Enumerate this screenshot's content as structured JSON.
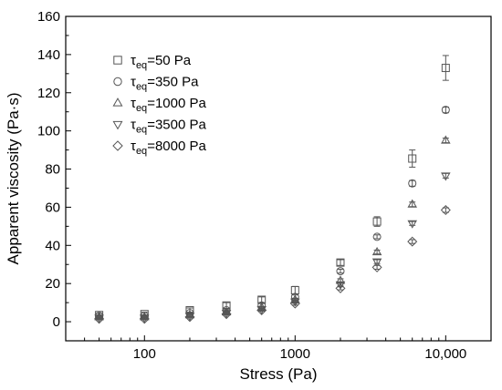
{
  "chart_data": {
    "type": "scatter",
    "xlabel": "Stress (Pa)",
    "ylabel": "Apparent viscosity (Pa·s)",
    "xscale": "log",
    "xlim": [
      30,
      20000
    ],
    "ylim": [
      -10,
      160
    ],
    "xticks": [
      {
        "value": 100,
        "label": "100"
      },
      {
        "value": 1000,
        "label": "1000"
      },
      {
        "value": 10000,
        "label": "10,000"
      }
    ],
    "yticks": [
      0,
      20,
      40,
      60,
      80,
      100,
      120,
      140,
      160
    ],
    "grid": false,
    "legend_position": "top-left",
    "x": [
      50,
      100,
      200,
      350,
      600,
      1000,
      2000,
      3500,
      6000,
      10000
    ],
    "series": [
      {
        "name": "τeq=50 Pa",
        "legend_main": "τ",
        "legend_sub": "eq",
        "legend_rest": "=50 Pa",
        "marker": "square",
        "values": [
          3.5,
          4.0,
          6.0,
          8.5,
          11.5,
          16.5,
          31.0,
          52.5,
          85.5,
          133.0
        ],
        "errors": [
          1.0,
          1.0,
          1.2,
          1.5,
          1.5,
          2.0,
          1.5,
          2.5,
          4.5,
          6.5
        ]
      },
      {
        "name": "τeq=350 Pa",
        "legend_main": "τ",
        "legend_sub": "eq",
        "legend_rest": "=350 Pa",
        "marker": "circle",
        "values": [
          3.0,
          3.0,
          4.5,
          6.0,
          8.5,
          13.0,
          26.5,
          44.5,
          72.5,
          111.0
        ],
        "errors": [
          0.5,
          0.5,
          0.5,
          0.8,
          1.0,
          1.0,
          1.0,
          1.0,
          1.5,
          1.5
        ]
      },
      {
        "name": "τeq=1000 Pa",
        "legend_main": "τ",
        "legend_sub": "eq",
        "legend_rest": "=1000 Pa",
        "marker": "triangle-up",
        "values": [
          2.5,
          2.5,
          3.5,
          5.0,
          7.5,
          11.5,
          21.5,
          36.5,
          61.5,
          95.0
        ],
        "errors": [
          0.5,
          0.5,
          0.5,
          0.5,
          0.5,
          0.8,
          1.0,
          1.0,
          1.2,
          1.2
        ]
      },
      {
        "name": "τeq=3500 Pa",
        "legend_main": "τ",
        "legend_sub": "eq",
        "legend_rest": "=3500 Pa",
        "marker": "triangle-down",
        "values": [
          2.0,
          2.0,
          3.0,
          4.5,
          6.5,
          10.5,
          19.5,
          31.5,
          51.5,
          76.5
        ],
        "errors": [
          0.5,
          0.5,
          0.5,
          0.5,
          0.5,
          0.8,
          0.8,
          1.0,
          1.0,
          1.2
        ]
      },
      {
        "name": "τeq=8000 Pa",
        "legend_main": "τ",
        "legend_sub": "eq",
        "legend_rest": "=8000 Pa",
        "marker": "diamond",
        "values": [
          1.5,
          1.5,
          2.5,
          4.0,
          6.0,
          9.5,
          17.5,
          28.5,
          42.0,
          58.5
        ],
        "errors": [
          0.5,
          0.5,
          0.5,
          0.5,
          0.5,
          0.8,
          0.8,
          1.0,
          1.0,
          1.2
        ]
      }
    ]
  }
}
